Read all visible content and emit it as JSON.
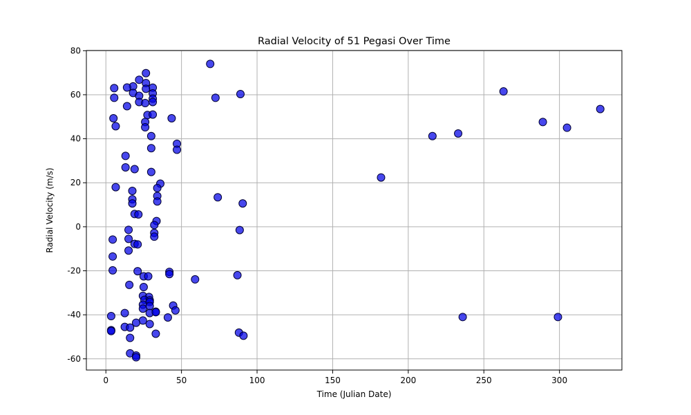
{
  "chart_data": {
    "type": "scatter",
    "title": "Radial Velocity of 51 Pegasi Over Time",
    "xlabel": "Time (Julian Date)",
    "ylabel": "Radial Velocity (m/s)",
    "xlim": [
      -12.9,
      341.3
    ],
    "ylim": [
      -65.1,
      80.1
    ],
    "xticks": [
      0,
      50,
      100,
      150,
      200,
      250,
      300
    ],
    "yticks": [
      -60,
      -40,
      -20,
      0,
      20,
      40,
      60,
      80
    ],
    "grid": true,
    "colors": {
      "marker_fill": "#0000e6",
      "marker_edge": "#000033",
      "grid": "#b0b0b0"
    },
    "points": [
      {
        "x": 69.0,
        "y": 74.0
      },
      {
        "x": 26.5,
        "y": 69.8
      },
      {
        "x": 22.0,
        "y": 66.8
      },
      {
        "x": 26.5,
        "y": 65.3
      },
      {
        "x": 18.0,
        "y": 63.8
      },
      {
        "x": 14.0,
        "y": 63.3
      },
      {
        "x": 5.5,
        "y": 63.0
      },
      {
        "x": 31.0,
        "y": 63.2
      },
      {
        "x": 26.5,
        "y": 62.7
      },
      {
        "x": 18.0,
        "y": 60.8
      },
      {
        "x": 31.0,
        "y": 60.6
      },
      {
        "x": 89.0,
        "y": 60.3
      },
      {
        "x": 22.0,
        "y": 59.5
      },
      {
        "x": 72.5,
        "y": 58.6
      },
      {
        "x": 5.5,
        "y": 58.6
      },
      {
        "x": 31.0,
        "y": 58.2
      },
      {
        "x": 22.0,
        "y": 56.7
      },
      {
        "x": 26.0,
        "y": 56.2
      },
      {
        "x": 31.0,
        "y": 56.7
      },
      {
        "x": 14.0,
        "y": 54.8
      },
      {
        "x": 27.5,
        "y": 50.8
      },
      {
        "x": 31.0,
        "y": 51.0
      },
      {
        "x": 43.5,
        "y": 49.3
      },
      {
        "x": 5.0,
        "y": 49.3
      },
      {
        "x": 26.0,
        "y": 47.6
      },
      {
        "x": 6.5,
        "y": 45.7
      },
      {
        "x": 26.0,
        "y": 45.2
      },
      {
        "x": 30.0,
        "y": 41.2
      },
      {
        "x": 47.0,
        "y": 37.7
      },
      {
        "x": 30.0,
        "y": 35.7
      },
      {
        "x": 47.0,
        "y": 35.0
      },
      {
        "x": 13.0,
        "y": 32.2
      },
      {
        "x": 13.0,
        "y": 27.0
      },
      {
        "x": 19.0,
        "y": 26.2
      },
      {
        "x": 30.0,
        "y": 24.9
      },
      {
        "x": 36.0,
        "y": 19.6
      },
      {
        "x": 6.5,
        "y": 18.0
      },
      {
        "x": 34.0,
        "y": 17.6
      },
      {
        "x": 17.5,
        "y": 16.3
      },
      {
        "x": 34.0,
        "y": 14.0
      },
      {
        "x": 74.0,
        "y": 13.4
      },
      {
        "x": 17.5,
        "y": 12.5
      },
      {
        "x": 34.0,
        "y": 11.5
      },
      {
        "x": 17.5,
        "y": 10.6
      },
      {
        "x": 90.5,
        "y": 10.6
      },
      {
        "x": 19.0,
        "y": 5.8
      },
      {
        "x": 21.5,
        "y": 5.6
      },
      {
        "x": 33.5,
        "y": 2.6
      },
      {
        "x": 32.0,
        "y": 0.8
      },
      {
        "x": 15.0,
        "y": -1.4
      },
      {
        "x": 88.5,
        "y": -1.5
      },
      {
        "x": 32.0,
        "y": -2.8
      },
      {
        "x": 32.0,
        "y": -4.5
      },
      {
        "x": 15.0,
        "y": -5.5
      },
      {
        "x": 4.5,
        "y": -5.8
      },
      {
        "x": 19.0,
        "y": -7.8
      },
      {
        "x": 21.0,
        "y": -8.0
      },
      {
        "x": 15.0,
        "y": -10.8
      },
      {
        "x": 4.5,
        "y": -13.5
      },
      {
        "x": 4.5,
        "y": -19.8
      },
      {
        "x": 21.0,
        "y": -20.2
      },
      {
        "x": 42.0,
        "y": -20.5
      },
      {
        "x": 42.0,
        "y": -21.5
      },
      {
        "x": 87.0,
        "y": -22.0
      },
      {
        "x": 25.0,
        "y": -22.5
      },
      {
        "x": 28.0,
        "y": -22.5
      },
      {
        "x": 59.0,
        "y": -23.9
      },
      {
        "x": 15.5,
        "y": -26.4
      },
      {
        "x": 25.0,
        "y": -27.4
      },
      {
        "x": 24.5,
        "y": -31.4
      },
      {
        "x": 28.5,
        "y": -31.9
      },
      {
        "x": 25.5,
        "y": -33.2
      },
      {
        "x": 29.0,
        "y": -33.4
      },
      {
        "x": 29.0,
        "y": -34.2
      },
      {
        "x": 24.5,
        "y": -35.4
      },
      {
        "x": 44.5,
        "y": -35.8
      },
      {
        "x": 29.0,
        "y": -36.0
      },
      {
        "x": 24.5,
        "y": -37.2
      },
      {
        "x": 46.0,
        "y": -38.0
      },
      {
        "x": 33.0,
        "y": -38.6
      },
      {
        "x": 12.5,
        "y": -39.2
      },
      {
        "x": 29.0,
        "y": -39.2
      },
      {
        "x": 33.0,
        "y": -38.8
      },
      {
        "x": 3.5,
        "y": -40.6
      },
      {
        "x": 41.0,
        "y": -41.2
      },
      {
        "x": 236.0,
        "y": -41.0
      },
      {
        "x": 299.0,
        "y": -41.0
      },
      {
        "x": 24.5,
        "y": -42.6
      },
      {
        "x": 20.0,
        "y": -43.6
      },
      {
        "x": 29.0,
        "y": -44.2
      },
      {
        "x": 12.5,
        "y": -45.5
      },
      {
        "x": 16.0,
        "y": -45.8
      },
      {
        "x": 3.5,
        "y": -47.0
      },
      {
        "x": 3.5,
        "y": -47.4
      },
      {
        "x": 88.0,
        "y": -48.1
      },
      {
        "x": 33.0,
        "y": -48.6
      },
      {
        "x": 91.0,
        "y": -49.5
      },
      {
        "x": 16.0,
        "y": -50.5
      },
      {
        "x": 16.0,
        "y": -57.5
      },
      {
        "x": 20.0,
        "y": -58.5
      },
      {
        "x": 20.0,
        "y": -59.3
      },
      {
        "x": 182.0,
        "y": 22.4
      },
      {
        "x": 216.0,
        "y": 41.2
      },
      {
        "x": 233.0,
        "y": 42.4
      },
      {
        "x": 263.0,
        "y": 61.5
      },
      {
        "x": 289.0,
        "y": 47.6
      },
      {
        "x": 305.0,
        "y": 45.0
      },
      {
        "x": 327.0,
        "y": 53.5
      }
    ]
  }
}
